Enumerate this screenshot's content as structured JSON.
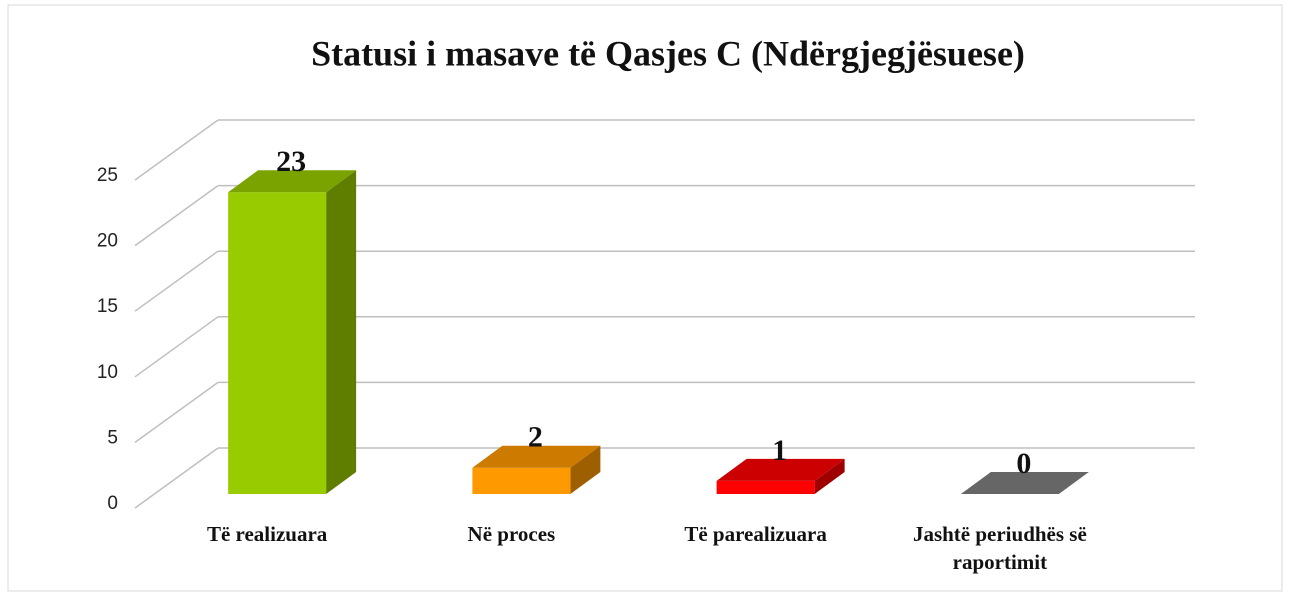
{
  "chart_data": {
    "type": "bar3d",
    "title": "Statusi i masave të Qasjes C (Ndërgjegjësuese)",
    "categories": [
      "Të realizuara",
      "Në proces",
      "Të parealizuara",
      "Jashtë periudhës së raportimit"
    ],
    "values": [
      23,
      2,
      1,
      0
    ],
    "colors": [
      "#99cc00",
      "#ff9900",
      "#ff0000",
      "#808080"
    ],
    "ylim": [
      0,
      25
    ],
    "yticks": [
      0,
      5,
      10,
      15,
      20,
      25
    ],
    "grid": true
  }
}
